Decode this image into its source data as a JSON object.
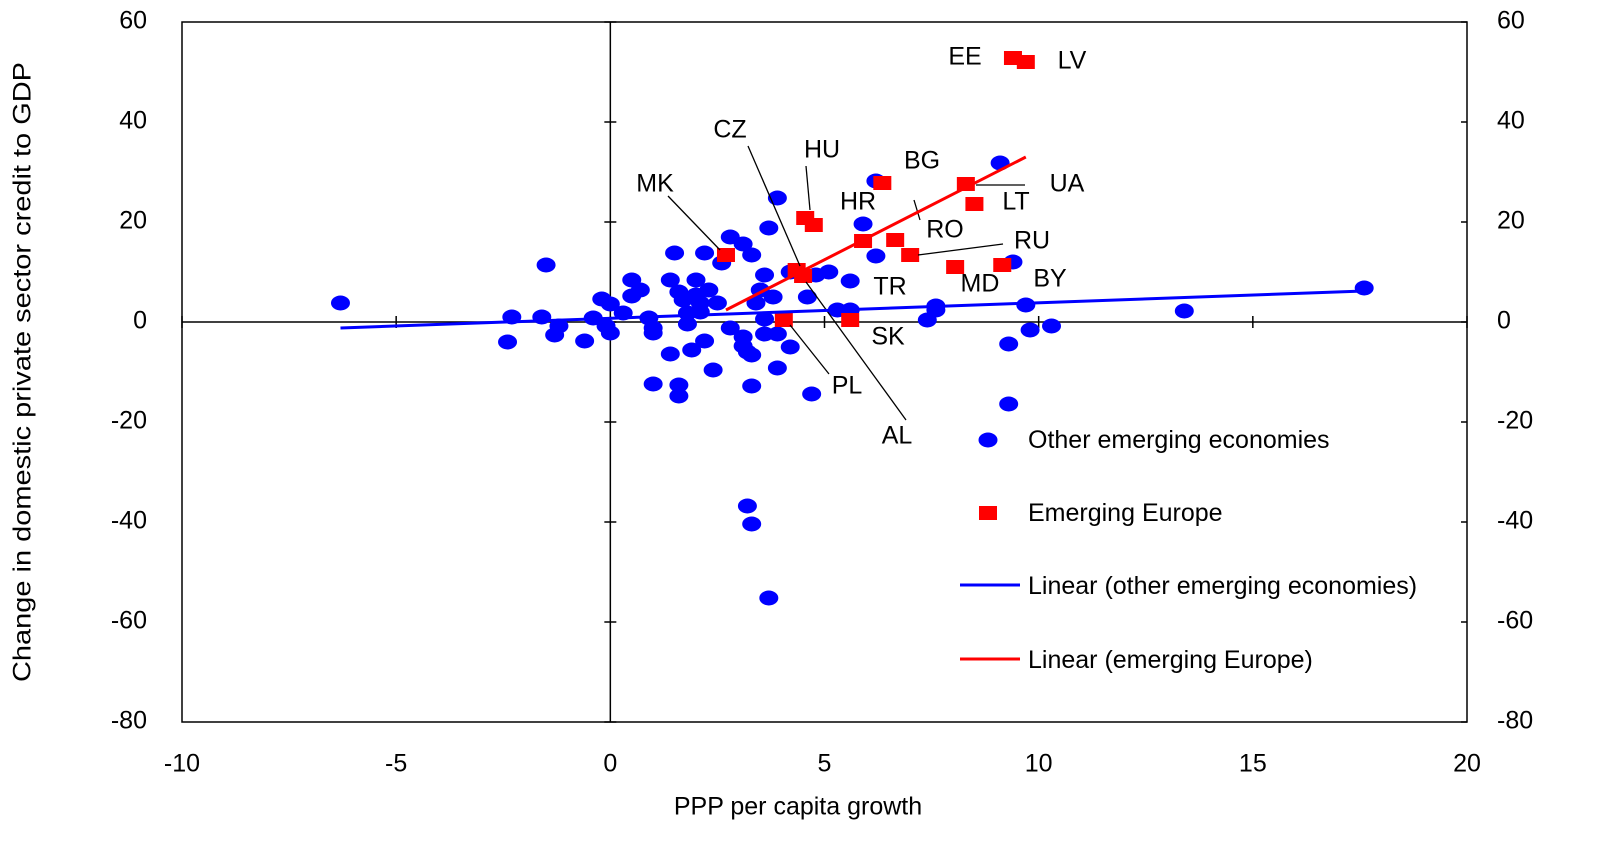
{
  "chart_data": {
    "type": "scatter",
    "xlabel": "PPP per capita growth",
    "ylabel": "Change in domestic private sector credit to GDP",
    "xlim": [
      -10,
      20
    ],
    "xticks": [
      -10,
      -5,
      0,
      5,
      10,
      15,
      20
    ],
    "ylim": [
      -80,
      60
    ],
    "yticks": [
      -80,
      -60,
      -40,
      -20,
      0,
      20,
      40,
      60
    ],
    "y2lim": [
      -80,
      60
    ],
    "y2ticks": [
      -80,
      -60,
      -40,
      -20,
      0,
      20,
      40,
      60
    ],
    "series": [
      {
        "name": "Other emerging economies",
        "color": "#0000ff",
        "marker": "circle",
        "x": [
          -6.3,
          -2.3,
          -2.4,
          -1.5,
          -1.6,
          -1.3,
          -1.2,
          -0.6,
          -0.4,
          -0.2,
          0,
          0,
          -0.1,
          0.3,
          0.5,
          0.5,
          0.7,
          0.9,
          1.0,
          1.0,
          1.0,
          1.4,
          1.4,
          1.5,
          1.6,
          1.6,
          1.6,
          1.7,
          1.8,
          1.8,
          1.9,
          2.0,
          2.0,
          2.1,
          2.1,
          2.2,
          2.2,
          2.3,
          2.4,
          2.5,
          2.6,
          2.8,
          2.8,
          3.1,
          3.1,
          3.1,
          3.2,
          3.3,
          3.3,
          3.3,
          3.2,
          3.3,
          3.4,
          3.5,
          3.6,
          3.6,
          3.6,
          3.7,
          3.7,
          3.8,
          3.9,
          3.9,
          3.9,
          4.2,
          4.2,
          4.6,
          4.7,
          4.8,
          5.1,
          5.3,
          5.6,
          5.9,
          6.2,
          6.2,
          7.4,
          7.6,
          7.6,
          9.1,
          9.4,
          9.3,
          9.3,
          9.7,
          9.8,
          10.3,
          13.4,
          17.6,
          5.6
        ],
        "values": [
          3.8,
          1,
          -4,
          11.4,
          1,
          -2.6,
          -0.8,
          -3.8,
          0.8,
          4.6,
          3.6,
          -2.2,
          -0.8,
          1.8,
          5.2,
          8.4,
          6.4,
          0.8,
          -1.2,
          -2.2,
          -12.4,
          -6.4,
          8.4,
          13.8,
          -12.6,
          -14.8,
          6,
          4.4,
          1.8,
          -0.4,
          -5.6,
          8.4,
          5.4,
          3.8,
          2,
          13.8,
          -3.8,
          6.4,
          -9.6,
          3.8,
          11.8,
          17,
          -1.2,
          -3,
          -4.8,
          15.6,
          -6,
          -12.8,
          13.4,
          -6.6,
          -36.8,
          -40.4,
          3.8,
          6.4,
          -2.4,
          9.4,
          0.6,
          18.8,
          -55.2,
          5,
          24.8,
          -2.4,
          -9.2,
          -5,
          10,
          5,
          -14.4,
          9.4,
          10,
          2.4,
          2.4,
          19.6,
          13.2,
          28.2,
          0.4,
          2.4,
          3.2,
          31.8,
          12,
          -4.4,
          -16.4,
          3.4,
          -1.6,
          -0.8,
          2.2,
          6.8,
          8.2
        ]
      },
      {
        "name": "Emerging Europe",
        "color": "#ff0000",
        "marker": "square",
        "labels": [
          "EE",
          "LV",
          "BG",
          "UA",
          "LT",
          "HU",
          "HR",
          "RO",
          "RU",
          "MK",
          "CZ",
          "AL",
          "PL",
          "SK",
          "MD",
          "BY",
          "TR"
        ],
        "x": [
          9.4,
          9.7,
          6.35,
          8.3,
          8.5,
          4.55,
          4.75,
          6.65,
          7.0,
          2.7,
          4.35,
          4.5,
          4.05,
          5.6,
          8.05,
          9.15,
          5.9
        ],
        "values": [
          52.8,
          52,
          27.8,
          27.6,
          23.6,
          20.8,
          19.4,
          16.4,
          13.4,
          13.4,
          10.4,
          9.2,
          0.4,
          0.4,
          11,
          11.4,
          16.2
        ]
      },
      {
        "name": "Linear (other emerging economies)",
        "color": "#0000ff",
        "marker": "line",
        "x": [
          -6.3,
          17.6
        ],
        "values": [
          -1.2,
          6.2
        ]
      },
      {
        "name": "Linear (emerging Europe)",
        "color": "#ff0000",
        "marker": "line",
        "x": [
          2.7,
          9.7
        ],
        "values": [
          2.4,
          33
        ]
      }
    ]
  }
}
